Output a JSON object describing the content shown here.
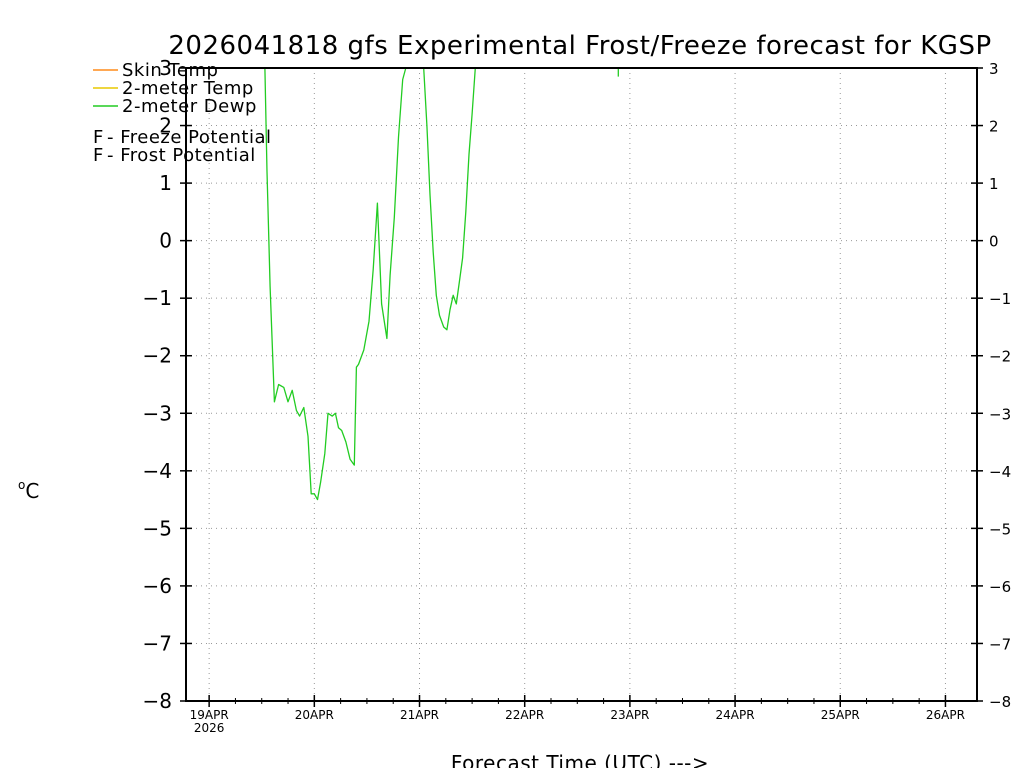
{
  "chart_data": {
    "type": "line",
    "title": "2026041818 gfs Experimental Frost/Freeze forecast for KGSP",
    "xlabel": "Forecast Time (UTC) --->",
    "ylabel": "°C",
    "ylabel_superscript": "o",
    "ylabel_unit": "C",
    "ylim": [
      -8,
      3
    ],
    "y_ticks": [
      -8,
      -7,
      -6,
      -5,
      -4,
      -3,
      -2,
      -1,
      0,
      1,
      2,
      3
    ],
    "xlim": [
      -0.22,
      7.3
    ],
    "x_ticks": [
      {
        "pos": 0,
        "label": "19APR",
        "sublabel": "2026"
      },
      {
        "pos": 1,
        "label": "20APR",
        "sublabel": ""
      },
      {
        "pos": 2,
        "label": "21APR",
        "sublabel": ""
      },
      {
        "pos": 3,
        "label": "22APR",
        "sublabel": ""
      },
      {
        "pos": 4,
        "label": "23APR",
        "sublabel": ""
      },
      {
        "pos": 5,
        "label": "24APR",
        "sublabel": ""
      },
      {
        "pos": 6,
        "label": "25APR",
        "sublabel": ""
      },
      {
        "pos": 7,
        "label": "26APR",
        "sublabel": ""
      }
    ],
    "grid": true,
    "legend": [
      {
        "label": "Skin Temp",
        "color": "#ff8c1a"
      },
      {
        "label": "2-meter Temp",
        "color": "#e8c800"
      },
      {
        "label": "2-meter Dewp",
        "color": "#22cc22"
      }
    ],
    "annotations": [
      {
        "symbol": "F",
        "text": " - Freeze Potential",
        "color": "#cc2299"
      },
      {
        "symbol": "F",
        "text": " - Frost Potential",
        "color": "#5555dd"
      }
    ],
    "series": [
      {
        "name": "2-meter Dewp",
        "color": "#22cc22",
        "x": [
          0.53,
          0.55,
          0.58,
          0.62,
          0.66,
          0.71,
          0.75,
          0.79,
          0.83,
          0.86,
          0.9,
          0.94,
          0.97,
          1.0,
          1.03,
          1.06,
          1.1,
          1.13,
          1.17,
          1.2,
          1.23,
          1.26,
          1.3,
          1.34,
          1.38,
          1.4,
          1.42,
          1.47,
          1.52,
          1.56,
          1.6,
          1.64,
          1.69,
          1.72,
          1.76,
          1.8,
          1.84,
          1.87,
          1.9,
          1.93,
          2.04,
          2.07,
          2.1,
          2.13,
          2.16,
          2.19,
          2.23,
          2.26,
          2.29,
          2.32,
          2.35,
          2.38,
          2.41,
          2.44,
          2.47,
          2.5,
          2.53,
          2.56,
          2.6,
          2.63
        ],
        "y": [
          3.0,
          1.2,
          -0.8,
          -2.8,
          -2.5,
          -2.55,
          -2.8,
          -2.6,
          -2.95,
          -3.05,
          -2.9,
          -3.4,
          -4.4,
          -4.4,
          -4.5,
          -4.2,
          -3.7,
          -3.0,
          -3.05,
          -3.0,
          -3.25,
          -3.3,
          -3.5,
          -3.8,
          -3.9,
          -2.2,
          -2.15,
          -1.9,
          -1.4,
          -0.5,
          0.65,
          -1.1,
          -1.7,
          -0.6,
          0.4,
          1.8,
          2.8,
          3.0,
          3.0,
          3.0,
          3.0,
          2.0,
          0.8,
          -0.2,
          -0.95,
          -1.3,
          -1.5,
          -1.55,
          -1.2,
          -0.95,
          -1.1,
          -0.7,
          -0.3,
          0.5,
          1.5,
          2.2,
          3.0,
          3.0,
          3.0,
          3.0
        ]
      },
      {
        "name": "2-meter Dewp (spike)",
        "color": "#22cc22",
        "x": [
          3.89,
          3.89
        ],
        "y": [
          3.0,
          2.85
        ]
      }
    ]
  }
}
